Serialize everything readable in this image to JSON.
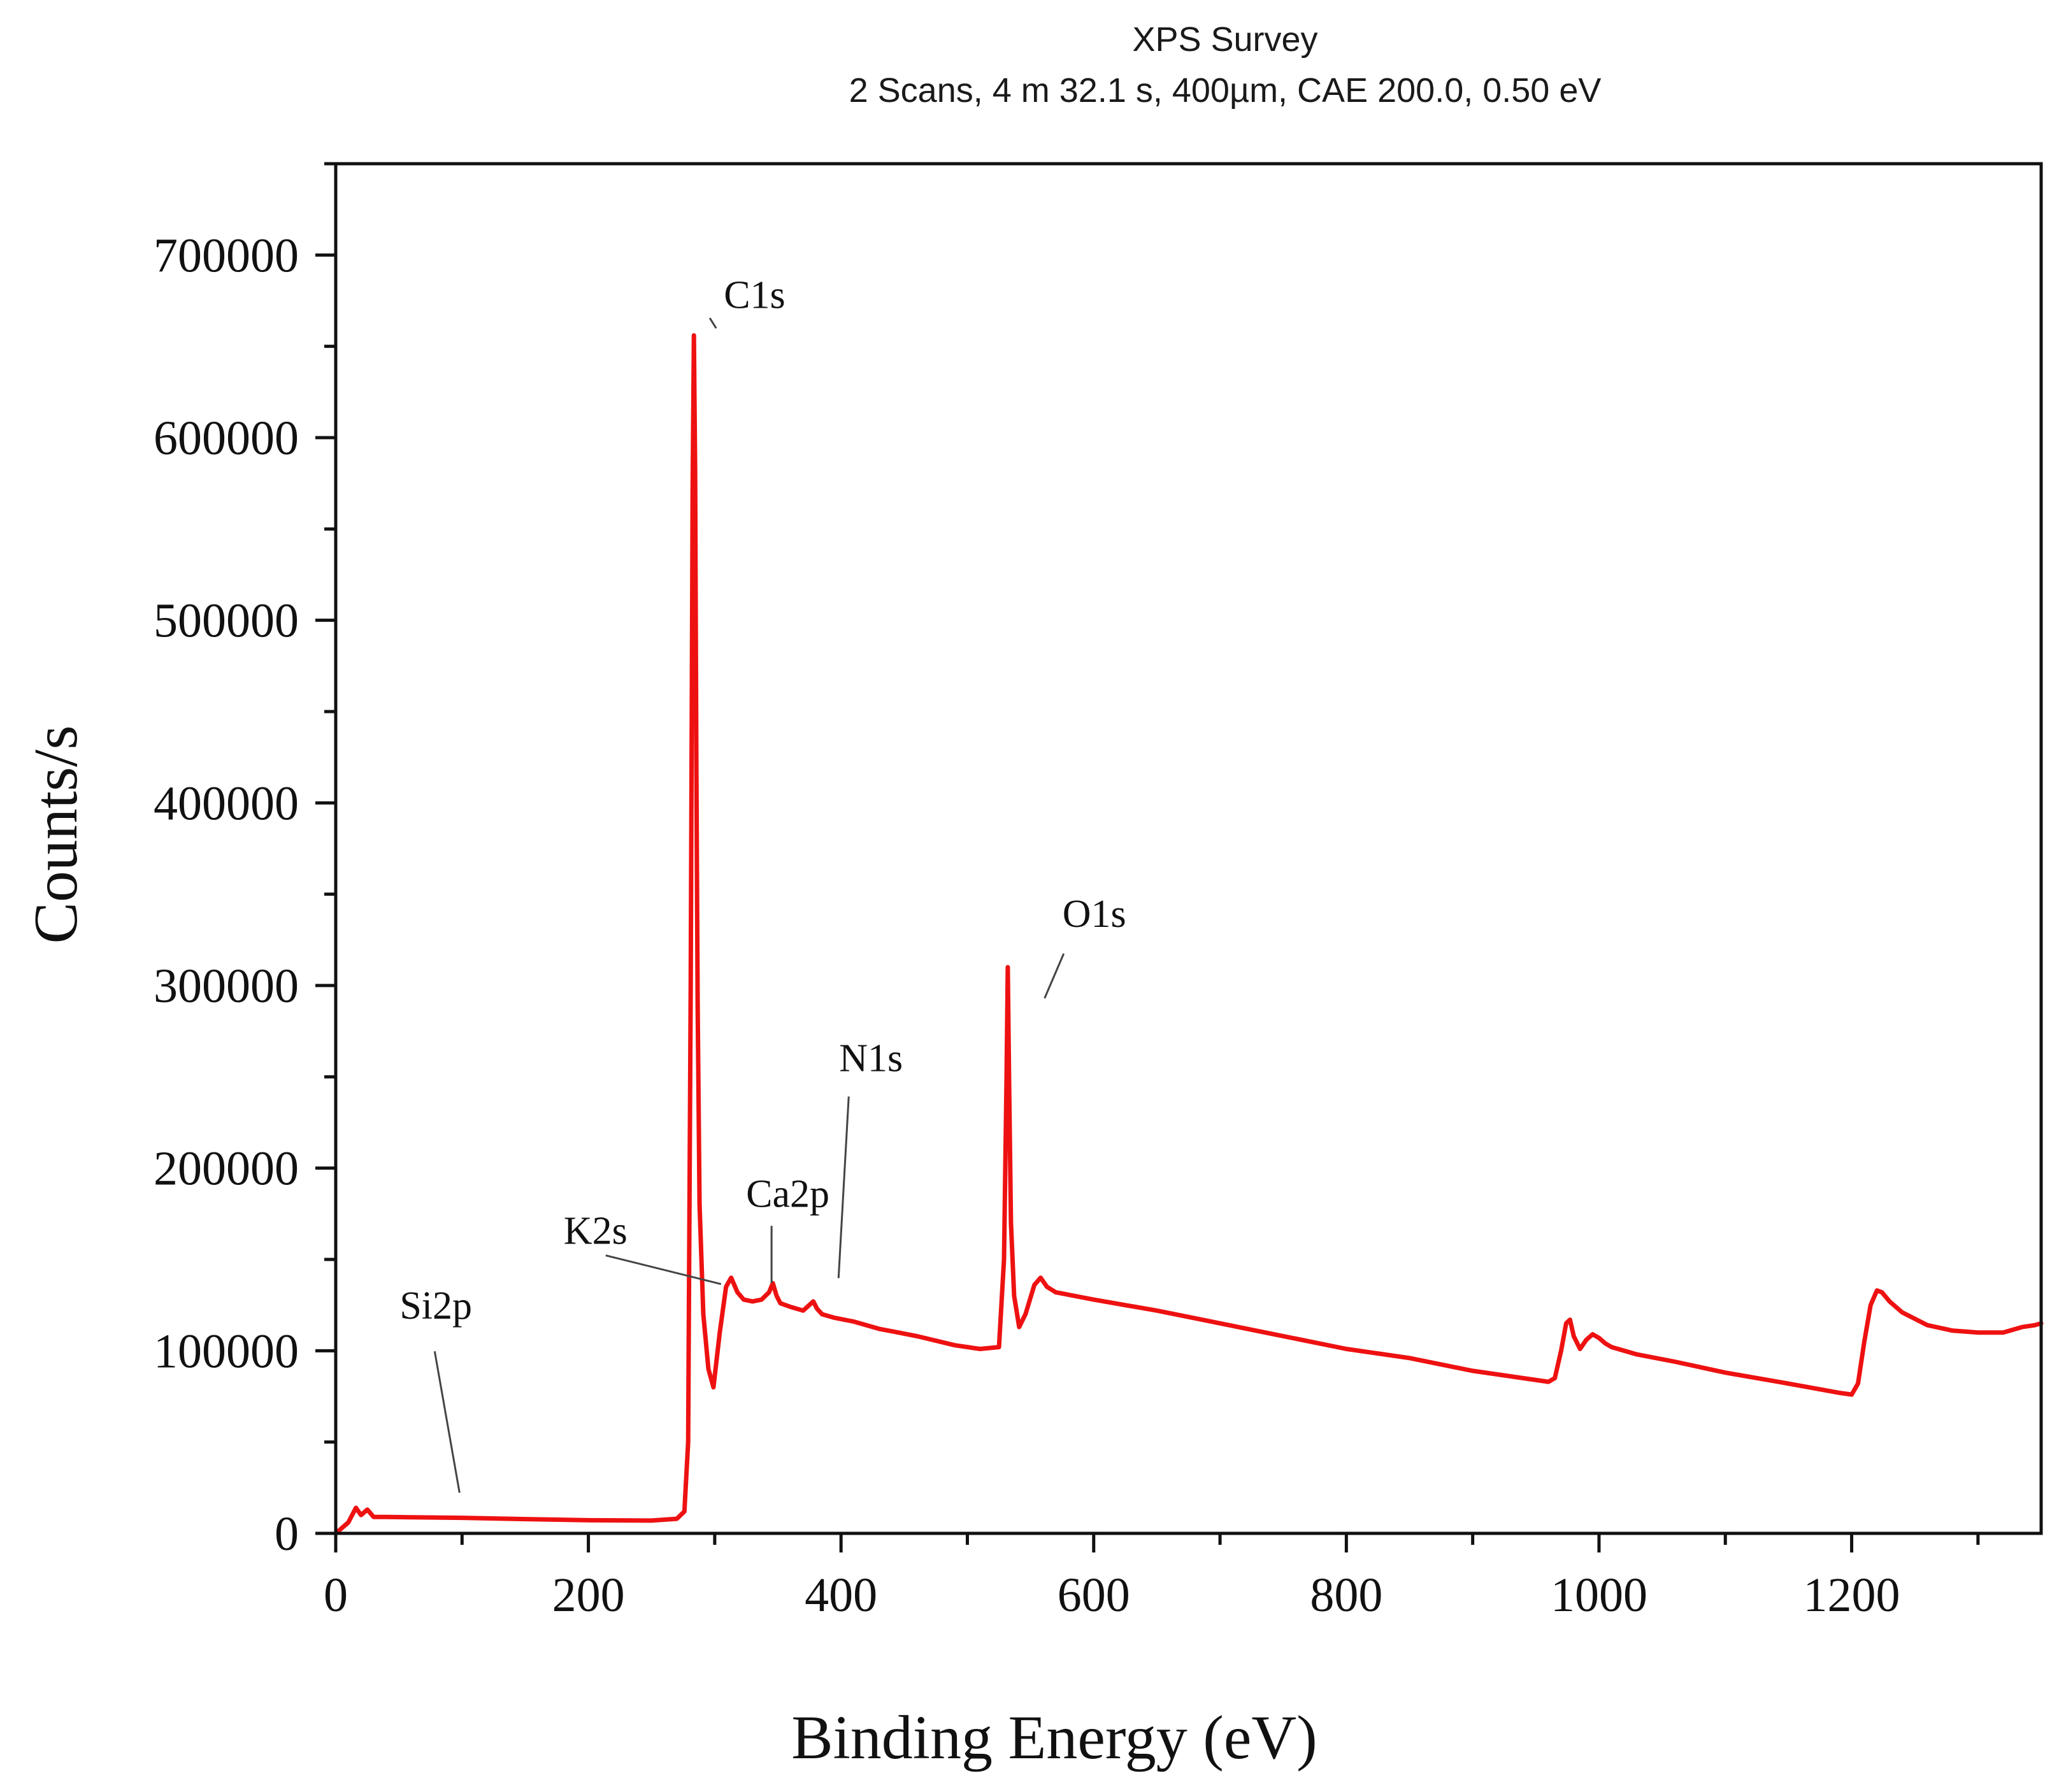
{
  "chart_data": {
    "type": "line",
    "title": "XPS Survey",
    "subtitle": "2 Scans,  4 m 32.1 s,  400µm,  CAE 200.0,  0.50 eV",
    "xlabel": "Binding Energy (eV)",
    "ylabel": "Counts/s",
    "xlim": [
      0,
      1350
    ],
    "ylim": [
      0,
      750000
    ],
    "x_ticks": [
      0,
      200,
      400,
      600,
      800,
      1000,
      1200
    ],
    "x_tick_labels": [
      "0",
      "200",
      "400",
      "600",
      "800",
      "1000",
      "1200"
    ],
    "y_ticks": [
      0,
      100000,
      200000,
      300000,
      400000,
      500000,
      600000,
      700000
    ],
    "y_tick_labels": [
      "0",
      "100000",
      "200000",
      "300000",
      "400000",
      "500000",
      "600000",
      "700000"
    ],
    "grid": false,
    "series": [
      {
        "name": "XPS Survey",
        "color": "#ee1111",
        "x": [
          0,
          10,
          16,
          20,
          25,
          30,
          40,
          60,
          100,
          150,
          200,
          250,
          270,
          276,
          279,
          281,
          282.5,
          283.5,
          284.5,
          285.5,
          286.5,
          288,
          291,
          295,
          299,
          304,
          309,
          313,
          318,
          323,
          330,
          337,
          343,
          346,
          349,
          352,
          360,
          370,
          378,
          381,
          385,
          395,
          410,
          430,
          460,
          490,
          510,
          525,
          529,
          531,
          532,
          533,
          534.5,
          537,
          541,
          546,
          553,
          558,
          563,
          570,
          600,
          650,
          700,
          750,
          800,
          850,
          900,
          930,
          960,
          965,
          970,
          974,
          977,
          980,
          985,
          990,
          995,
          1000,
          1005,
          1010,
          1030,
          1060,
          1100,
          1150,
          1190,
          1200,
          1205,
          1210,
          1215,
          1220,
          1224,
          1230,
          1240,
          1260,
          1280,
          1300,
          1320,
          1335,
          1345,
          1350
        ],
        "y": [
          0,
          6000,
          14000,
          10000,
          13000,
          9000,
          9000,
          8800,
          8500,
          7800,
          7200,
          7000,
          8000,
          12000,
          50000,
          300000,
          570000,
          656000,
          580000,
          420000,
          290000,
          180000,
          120000,
          90000,
          80000,
          110000,
          135000,
          140000,
          132000,
          128000,
          127000,
          128000,
          132000,
          137000,
          130000,
          126000,
          124000,
          122000,
          127000,
          123000,
          120000,
          118000,
          116000,
          112000,
          108000,
          103000,
          101000,
          102000,
          150000,
          250000,
          310000,
          250000,
          170000,
          130000,
          113000,
          120000,
          136000,
          140000,
          135000,
          132000,
          128000,
          122000,
          115000,
          108000,
          101000,
          96000,
          89000,
          86000,
          83000,
          85000,
          100000,
          115000,
          117000,
          108000,
          101000,
          106000,
          109000,
          107000,
          104000,
          102000,
          98000,
          94000,
          88000,
          82000,
          77000,
          76000,
          82000,
          105000,
          125000,
          133000,
          132000,
          127000,
          121000,
          114000,
          111000,
          110000,
          110000,
          113000,
          114000,
          115000
        ]
      }
    ],
    "annotations": [
      {
        "text": "C1s",
        "x": 282,
        "y": 655000
      },
      {
        "text": "O1s",
        "x": 545,
        "y": 300000
      },
      {
        "text": "N1s",
        "x": 396,
        "y": 145000
      },
      {
        "text": "Ca2p",
        "x": 345,
        "y": 137000
      },
      {
        "text": "K2s",
        "x": 305,
        "y": 140000
      },
      {
        "text": "Si2p",
        "x": 98,
        "y": 9000
      }
    ]
  }
}
